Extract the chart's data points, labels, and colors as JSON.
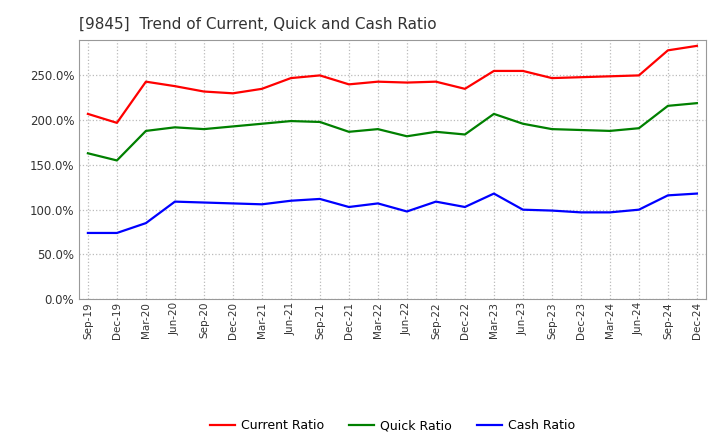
{
  "title": "[9845]  Trend of Current, Quick and Cash Ratio",
  "x_labels": [
    "Sep-19",
    "Dec-19",
    "Mar-20",
    "Jun-20",
    "Sep-20",
    "Dec-20",
    "Mar-21",
    "Jun-21",
    "Sep-21",
    "Dec-21",
    "Mar-22",
    "Jun-22",
    "Sep-22",
    "Dec-22",
    "Mar-23",
    "Jun-23",
    "Sep-23",
    "Dec-23",
    "Mar-24",
    "Jun-24",
    "Sep-24",
    "Dec-24"
  ],
  "current_ratio": [
    2.07,
    1.97,
    2.43,
    2.38,
    2.32,
    2.3,
    2.35,
    2.47,
    2.5,
    2.4,
    2.43,
    2.42,
    2.43,
    2.35,
    2.55,
    2.55,
    2.47,
    2.48,
    2.49,
    2.5,
    2.78,
    2.83
  ],
  "quick_ratio": [
    1.63,
    1.55,
    1.88,
    1.92,
    1.9,
    1.93,
    1.96,
    1.99,
    1.98,
    1.87,
    1.9,
    1.82,
    1.87,
    1.84,
    2.07,
    1.96,
    1.9,
    1.89,
    1.88,
    1.91,
    2.16,
    2.19
  ],
  "cash_ratio": [
    0.74,
    0.74,
    0.85,
    1.09,
    1.08,
    1.07,
    1.06,
    1.1,
    1.12,
    1.03,
    1.07,
    0.98,
    1.09,
    1.03,
    1.18,
    1.0,
    0.99,
    0.97,
    0.97,
    1.0,
    1.16,
    1.18
  ],
  "current_color": "#ff0000",
  "quick_color": "#008000",
  "cash_color": "#0000ff",
  "ylim": [
    0.0,
    2.9
  ],
  "yticks": [
    0.0,
    0.5,
    1.0,
    1.5,
    2.0,
    2.5
  ],
  "background_color": "#ffffff",
  "grid_color": "#bbbbbb",
  "line_width": 1.6,
  "title_color": "#333333",
  "tick_color": "#333333"
}
